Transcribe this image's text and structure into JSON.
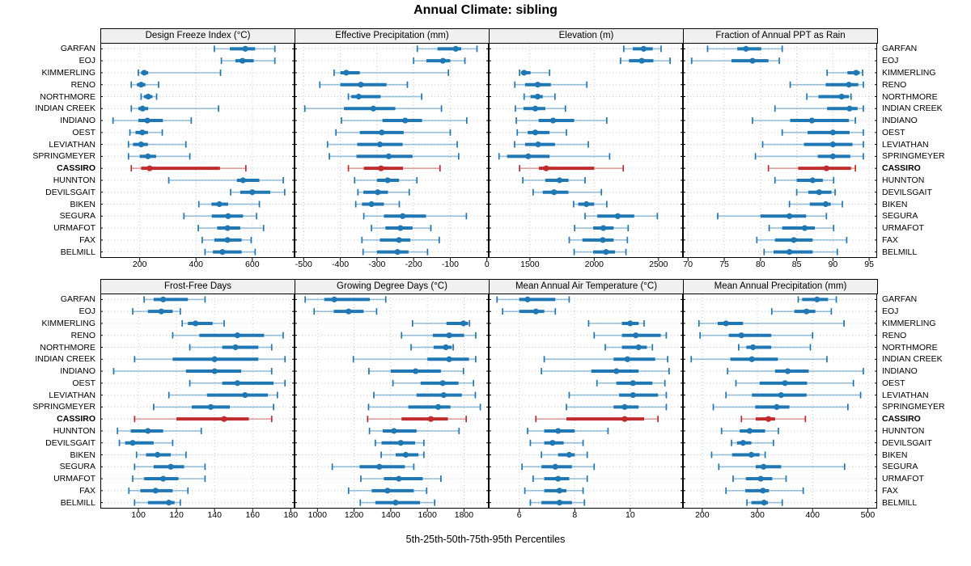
{
  "title": "Annual Climate: sibling",
  "caption": "5th-25th-50th-75th-95th Percentiles",
  "highlight_station": "CASSIRO",
  "colors": {
    "normal": "#1f77b4",
    "highlight": "#c02b2b",
    "grid": "#c9c9c9",
    "panel_header_bg": "#f0f0f0",
    "panel_border": "#000000"
  },
  "stations": [
    "GARFAN",
    "EOJ",
    "KIMMERLING",
    "RENO",
    "NORTHMORE",
    "INDIAN CREEK",
    "INDIANO",
    "OEST",
    "LEVIATHAN",
    "SPRINGMEYER",
    "CASSIRO",
    "HUNNTON",
    "DEVILSGAIT",
    "BIKEN",
    "SEGURA",
    "URMAFOT",
    "FAX",
    "BELMILL"
  ],
  "chart_data": [
    {
      "type": "percentile-dotplot",
      "title": "Design Freeze Index (°C)",
      "xlim": [
        60,
        750
      ],
      "ticks": [
        200,
        400,
        600
      ],
      "percentile_labels": [
        "p5",
        "p25",
        "p50",
        "p75",
        "p95"
      ],
      "values": [
        [
          465,
          520,
          575,
          610,
          680
        ],
        [
          490,
          540,
          565,
          605,
          680
        ],
        [
          195,
          205,
          216,
          230,
          487
        ],
        [
          170,
          190,
          205,
          220,
          267
        ],
        [
          205,
          215,
          230,
          245,
          260
        ],
        [
          170,
          195,
          210,
          230,
          480
        ],
        [
          105,
          195,
          227,
          282,
          383
        ],
        [
          165,
          185,
          209,
          229,
          280
        ],
        [
          160,
          176,
          205,
          229,
          364
        ],
        [
          160,
          200,
          229,
          258,
          378
        ],
        [
          170,
          205,
          235,
          485,
          577
        ],
        [
          303,
          545,
          567,
          625,
          710
        ],
        [
          523,
          557,
          600,
          664,
          715
        ],
        [
          410,
          455,
          483,
          514,
          625
        ],
        [
          357,
          456,
          514,
          567,
          615
        ],
        [
          408,
          475,
          512,
          557,
          640
        ],
        [
          422,
          465,
          512,
          562,
          596
        ],
        [
          432,
          460,
          494,
          562,
          610
        ]
      ]
    },
    {
      "type": "percentile-dotplot",
      "title": "Effective Precipitation (mm)",
      "xlim": [
        -525,
        5
      ],
      "ticks": [
        -500,
        -400,
        -300,
        -200,
        -100,
        0
      ],
      "percentile_labels": [
        "p5",
        "p25",
        "p50",
        "p75",
        "p95"
      ],
      "values": [
        [
          -190,
          -135,
          -85,
          -70,
          -27
        ],
        [
          -200,
          -165,
          -120,
          -100,
          -60
        ],
        [
          -417,
          -400,
          -384,
          -347,
          -105
        ],
        [
          -456,
          -400,
          -344,
          -274,
          -217
        ],
        [
          -378,
          -370,
          -350,
          -290,
          -178
        ],
        [
          -497,
          -390,
          -310,
          -250,
          -124
        ],
        [
          -397,
          -285,
          -223,
          -177,
          -55
        ],
        [
          -412,
          -347,
          -287,
          -227,
          -100
        ],
        [
          -435,
          -354,
          -292,
          -230,
          -81
        ],
        [
          -430,
          -356,
          -268,
          -203,
          -77
        ],
        [
          -378,
          -336,
          -289,
          -229,
          -128
        ],
        [
          -361,
          -300,
          -271,
          -240,
          -191
        ],
        [
          -352,
          -337,
          -298,
          -270,
          -212
        ],
        [
          -358,
          -341,
          -315,
          -281,
          -239
        ],
        [
          -336,
          -281,
          -230,
          -166,
          -56
        ],
        [
          -315,
          -277,
          -236,
          -203,
          -153
        ],
        [
          -341,
          -292,
          -240,
          -209,
          -130
        ],
        [
          -338,
          -300,
          -244,
          -214,
          -162
        ]
      ]
    },
    {
      "type": "percentile-dotplot",
      "title": "Elevation (m)",
      "xlim": [
        1180,
        2690
      ],
      "ticks": [
        1500,
        2000,
        2500
      ],
      "percentile_labels": [
        "p5",
        "p25",
        "p50",
        "p75",
        "p95"
      ],
      "values": [
        [
          2230,
          2300,
          2385,
          2455,
          2520
        ],
        [
          2205,
          2270,
          2370,
          2460,
          2590
        ],
        [
          1420,
          1432,
          1455,
          1505,
          1653
        ],
        [
          1383,
          1462,
          1561,
          1663,
          1943
        ],
        [
          1455,
          1505,
          1560,
          1600,
          1695
        ],
        [
          1387,
          1450,
          1542,
          1620,
          1776
        ],
        [
          1394,
          1568,
          1680,
          1844,
          2098
        ],
        [
          1402,
          1483,
          1542,
          1653,
          1784
        ],
        [
          1381,
          1462,
          1564,
          1695,
          1954
        ],
        [
          1260,
          1323,
          1487,
          1653,
          2120
        ],
        [
          1420,
          1570,
          1627,
          2000,
          2226
        ],
        [
          1445,
          1620,
          1731,
          1801,
          1929
        ],
        [
          1525,
          1600,
          1688,
          1800,
          2056
        ],
        [
          1840,
          1876,
          1939,
          2000,
          2098
        ],
        [
          1929,
          2024,
          2183,
          2311,
          2491
        ],
        [
          1848,
          1992,
          2071,
          2151,
          2264
        ],
        [
          1806,
          1908,
          2067,
          2151,
          2258
        ],
        [
          1844,
          1992,
          2092,
          2162,
          2247
        ]
      ]
    },
    {
      "type": "percentile-dotplot",
      "title": "Fraction of Annual PPT as Rain",
      "xlim": [
        69.3,
        96.1
      ],
      "ticks": [
        70,
        75,
        80,
        85,
        90,
        95
      ],
      "percentile_labels": [
        "p5",
        "p25",
        "p50",
        "p75",
        "p95"
      ],
      "values": [
        [
          72.7,
          76.8,
          78.0,
          80.1,
          83.0
        ],
        [
          70.5,
          76.0,
          78.9,
          81.1,
          82.6
        ],
        [
          89.2,
          92.0,
          93.2,
          93.7,
          94.1
        ],
        [
          84.1,
          89.0,
          92.2,
          93.5,
          94.2
        ],
        [
          86.4,
          88.0,
          91.2,
          92.2,
          92.5
        ],
        [
          82.0,
          89.2,
          92.3,
          93.4,
          94.2
        ],
        [
          78.9,
          84.1,
          87.1,
          92.2,
          93.1
        ],
        [
          83.0,
          86.5,
          90.0,
          92.3,
          94.2
        ],
        [
          80.3,
          86.0,
          90.0,
          92.7,
          94.2
        ],
        [
          79.3,
          87.9,
          90.0,
          92.4,
          94.2
        ],
        [
          81.1,
          85.2,
          89.1,
          92.5,
          93.1
        ],
        [
          82.0,
          85.0,
          87.2,
          88.6,
          90.1
        ],
        [
          85.0,
          86.6,
          88.1,
          89.8,
          90.3
        ],
        [
          84.0,
          86.8,
          89.0,
          89.7,
          91.3
        ],
        [
          74.1,
          80.0,
          84.0,
          86.3,
          89.1
        ],
        [
          81.2,
          83.0,
          86.1,
          87.5,
          90.1
        ],
        [
          79.5,
          82.0,
          84.6,
          87.2,
          91.9
        ],
        [
          80.5,
          81.8,
          84.0,
          87.2,
          90.6
        ]
      ]
    },
    {
      "type": "percentile-dotplot",
      "title": "Frost-Free Days",
      "xlim": [
        80,
        182
      ],
      "ticks": [
        100,
        120,
        140,
        160,
        180
      ],
      "percentile_labels": [
        "p5",
        "p25",
        "p50",
        "p75",
        "p95"
      ],
      "values": [
        [
          103,
          108,
          113,
          126,
          135
        ],
        [
          97,
          105,
          112,
          118,
          122
        ],
        [
          123,
          126,
          130,
          139,
          145
        ],
        [
          118,
          132,
          152,
          166,
          176
        ],
        [
          127,
          144,
          151,
          163,
          170
        ],
        [
          98,
          118,
          140,
          163,
          177
        ],
        [
          87,
          125,
          140,
          154,
          170
        ],
        [
          127,
          144,
          152,
          171,
          177
        ],
        [
          116,
          136,
          156,
          168,
          173
        ],
        [
          108,
          128,
          138,
          148,
          171
        ],
        [
          98,
          120,
          145,
          158,
          170
        ],
        [
          89,
          96,
          105,
          113,
          133
        ],
        [
          90,
          93,
          97,
          108,
          118
        ],
        [
          99,
          104,
          110,
          117,
          125
        ],
        [
          98,
          108,
          117,
          124,
          135
        ],
        [
          97,
          103,
          113,
          121,
          135
        ],
        [
          95,
          101,
          109,
          118,
          126
        ],
        [
          98,
          105,
          116,
          119,
          122
        ]
      ]
    },
    {
      "type": "percentile-dotplot",
      "title": "Growing Degree Days (°C)",
      "xlim": [
        875,
        1935
      ],
      "ticks": [
        1000,
        1200,
        1400,
        1600,
        1800
      ],
      "percentile_labels": [
        "p5",
        "p25",
        "p50",
        "p75",
        "p95"
      ],
      "values": [
        [
          933,
          1037,
          1092,
          1286,
          1373
        ],
        [
          982,
          1089,
          1170,
          1252,
          1323
        ],
        [
          1519,
          1704,
          1797,
          1822,
          1830
        ],
        [
          1459,
          1630,
          1719,
          1800,
          1864
        ],
        [
          1511,
          1634,
          1701,
          1733,
          1741
        ],
        [
          1196,
          1600,
          1719,
          1827,
          1864
        ],
        [
          1281,
          1400,
          1536,
          1674,
          1797
        ],
        [
          1412,
          1563,
          1684,
          1770,
          1852
        ],
        [
          1308,
          1541,
          1689,
          1788,
          1862
        ],
        [
          1279,
          1496,
          1659,
          1726,
          1889
        ],
        [
          1274,
          1459,
          1619,
          1712,
          1812
        ],
        [
          1284,
          1356,
          1418,
          1541,
          1773
        ],
        [
          1316,
          1350,
          1455,
          1533,
          1581
        ],
        [
          1348,
          1427,
          1482,
          1551,
          1581
        ],
        [
          1081,
          1230,
          1338,
          1477,
          1526
        ],
        [
          1237,
          1363,
          1444,
          1575,
          1674
        ],
        [
          1170,
          1296,
          1382,
          1526,
          1596
        ],
        [
          1234,
          1316,
          1427,
          1560,
          1640
        ]
      ]
    },
    {
      "type": "percentile-dotplot",
      "title": "Mean Annual Air Temperature (°C)",
      "xlim": [
        4.9,
        11.9
      ],
      "ticks": [
        6,
        8,
        10
      ],
      "percentile_labels": [
        "p5",
        "p25",
        "p50",
        "p75",
        "p95"
      ],
      "values": [
        [
          5.2,
          6.0,
          6.3,
          7.3,
          7.8
        ],
        [
          5.4,
          6.0,
          6.6,
          6.9,
          7.3
        ],
        [
          8.5,
          9.7,
          10.0,
          10.3,
          10.5
        ],
        [
          8.7,
          9.7,
          10.2,
          11.1,
          11.3
        ],
        [
          9.1,
          9.7,
          10.3,
          10.6,
          10.8
        ],
        [
          6.9,
          9.4,
          9.9,
          10.9,
          11.35
        ],
        [
          6.8,
          8.6,
          9.5,
          10.3,
          11.4
        ],
        [
          8.8,
          9.5,
          10.1,
          10.8,
          11.25
        ],
        [
          7.8,
          9.6,
          10.1,
          11.0,
          11.3
        ],
        [
          7.7,
          9.4,
          9.8,
          10.3,
          11.3
        ],
        [
          6.6,
          7.7,
          9.8,
          10.5,
          11.0
        ],
        [
          6.3,
          6.9,
          7.4,
          8.0,
          9.2
        ],
        [
          6.4,
          6.9,
          7.2,
          7.6,
          8.3
        ],
        [
          6.8,
          7.4,
          7.8,
          8.0,
          8.45
        ],
        [
          6.1,
          6.8,
          7.3,
          7.9,
          8.7
        ],
        [
          6.5,
          6.9,
          7.4,
          7.8,
          8.45
        ],
        [
          6.2,
          6.9,
          7.45,
          7.7,
          8.3
        ],
        [
          6.4,
          6.8,
          7.45,
          7.9,
          8.35
        ]
      ]
    },
    {
      "type": "percentile-dotplot",
      "title": "Mean Annual Precipitation (mm)",
      "xlim": [
        165,
        517
      ],
      "ticks": [
        200,
        300,
        400,
        500
      ],
      "percentile_labels": [
        "p5",
        "p25",
        "p50",
        "p75",
        "p95"
      ],
      "values": [
        [
          374,
          381,
          408,
          428,
          443
        ],
        [
          326,
          367,
          389,
          405,
          434
        ],
        [
          194,
          228,
          243,
          274,
          457
        ],
        [
          196,
          248,
          271,
          325,
          400
        ],
        [
          266,
          280,
          292,
          325,
          396
        ],
        [
          180,
          251,
          290,
          337,
          426
        ],
        [
          246,
          332,
          355,
          393,
          492
        ],
        [
          261,
          304,
          350,
          390,
          474
        ],
        [
          243,
          290,
          343,
          389,
          487
        ],
        [
          220,
          296,
          335,
          358,
          464
        ],
        [
          271,
          297,
          320,
          332,
          387
        ],
        [
          235,
          268,
          286,
          314,
          338
        ],
        [
          253,
          263,
          274,
          289,
          329
        ],
        [
          217,
          254,
          289,
          304,
          314
        ],
        [
          230,
          297,
          311,
          343,
          458
        ],
        [
          256,
          279,
          306,
          327,
          352
        ],
        [
          243,
          278,
          310,
          321,
          383
        ],
        [
          281,
          289,
          312,
          319,
          345
        ]
      ]
    }
  ]
}
